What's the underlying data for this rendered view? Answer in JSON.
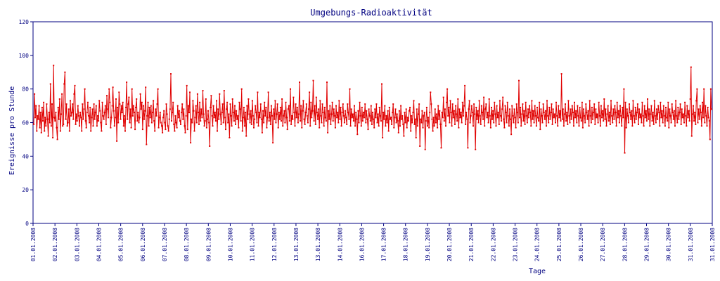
{
  "chart_data": {
    "type": "line",
    "title": "Umgebungs-Radioaktivität",
    "xlabel": "Tage",
    "ylabel": "Ereignisse pro Stunde",
    "ylim": [
      0,
      120
    ],
    "yticks": [
      0,
      20,
      40,
      60,
      80,
      100,
      120
    ],
    "x_tick_labels": [
      "01.01.2008",
      "02.01.2008",
      "03.01.2008",
      "04.01.2008",
      "05.01.2008",
      "06.01.2008",
      "07.01.2008",
      "08.01.2008",
      "09.01.2008",
      "10.01.2008",
      "11.01.2008",
      "12.01.2008",
      "13.01.2008",
      "13.01.2008",
      "14.01.2008",
      "16.01.2008",
      "17.01.2008",
      "18.01.2008",
      "19.01.2008",
      "20.01.2008",
      "21.01.2008",
      "22.01.2008",
      "23.01.2008",
      "24.01.2008",
      "25.01.2008",
      "26.01.2008",
      "27.01.2008",
      "28.01.2008",
      "29.01.2008",
      "30.01.2008",
      "31.01.2008",
      "31.01.2008"
    ],
    "grid": false,
    "color": "#e00000",
    "axis_color": "#000080",
    "series": [
      {
        "values": [
          59,
          77,
          63,
          70,
          55,
          64,
          62,
          70,
          57,
          66,
          54,
          69,
          61,
          72,
          55,
          63,
          58,
          71,
          62,
          52,
          66,
          60,
          83,
          58,
          71,
          51,
          94,
          63,
          61,
          66,
          57,
          50,
          69,
          62,
          74,
          55,
          65,
          77,
          58,
          59,
          83,
          90,
          62,
          71,
          58,
          60,
          68,
          55,
          73,
          64,
          66,
          71,
          62,
          77,
          82,
          59,
          65,
          61,
          70,
          64,
          58,
          66,
          63,
          55,
          71,
          62,
          68,
          80,
          61,
          57,
          66,
          72,
          64,
          60,
          69,
          55,
          63,
          68,
          58,
          71,
          62,
          66,
          70,
          58,
          64,
          61,
          73,
          67,
          60,
          55,
          72,
          64,
          62,
          66,
          70,
          59,
          76,
          68,
          63,
          80,
          72,
          57,
          63,
          70,
          81,
          67,
          58,
          63,
          74,
          49,
          69,
          60,
          78,
          71,
          62,
          70,
          66,
          72,
          58,
          64,
          55,
          69,
          84,
          62,
          71,
          75,
          60,
          68,
          57,
          80,
          64,
          70,
          66,
          56,
          69,
          74,
          61,
          66,
          60,
          63,
          77,
          68,
          72,
          56,
          70,
          62,
          67,
          81,
          47,
          64,
          72,
          58,
          69,
          63,
          70,
          60,
          66,
          73,
          61,
          55,
          68,
          64,
          71,
          80,
          57,
          63,
          66,
          60,
          58,
          54,
          63,
          67,
          60,
          56,
          71,
          65,
          58,
          55,
          62,
          68,
          89,
          61,
          66,
          72,
          59,
          55,
          64,
          60,
          57,
          70,
          63,
          67,
          61,
          59,
          66,
          71,
          62,
          68,
          58,
          54,
          64,
          82,
          56,
          70,
          66,
          78,
          48,
          62,
          60,
          73,
          67,
          55,
          63,
          70,
          60,
          77,
          66,
          59,
          72,
          61,
          68,
          63,
          79,
          65,
          58,
          61,
          74,
          57,
          62,
          67,
          60,
          46,
          69,
          76,
          64,
          58,
          70,
          63,
          66,
          61,
          73,
          55,
          68,
          62,
          77,
          65,
          59,
          66,
          71,
          60,
          79,
          63,
          56,
          68,
          72,
          60,
          65,
          51,
          71,
          64,
          58,
          74,
          66,
          61,
          70,
          59,
          67,
          62,
          64,
          57,
          72,
          68,
          61,
          80,
          55,
          63,
          69,
          58,
          66,
          52,
          70,
          62,
          74,
          65,
          60,
          67,
          59,
          73,
          64,
          57,
          62,
          70,
          66,
          60,
          78,
          58,
          66,
          63,
          71,
          62,
          54,
          67,
          60,
          72,
          64,
          69,
          57,
          63,
          78,
          61,
          66,
          59,
          70,
          64,
          48,
          68,
          62,
          73,
          60,
          65,
          71,
          57,
          66,
          62,
          69,
          61,
          74,
          58,
          64,
          67,
          60,
          72,
          63,
          56,
          68,
          70,
          61,
          80,
          59,
          64,
          62,
          75,
          66,
          58,
          71,
          63,
          69,
          60,
          65,
          84,
          61,
          70,
          57,
          67,
          73,
          62,
          59,
          66,
          71,
          64,
          60,
          68,
          78,
          58,
          72,
          63,
          67,
          85,
          61,
          70,
          59,
          75,
          66,
          62,
          68,
          57,
          73,
          64,
          60,
          71,
          66,
          58,
          69,
          63,
          61,
          84,
          54,
          67,
          62,
          70,
          59,
          65,
          72,
          61,
          68,
          64,
          57,
          70,
          63,
          66,
          60,
          73,
          62,
          69,
          58,
          66,
          71,
          64,
          60,
          67,
          63,
          59,
          71,
          66,
          62,
          80,
          58,
          68,
          63,
          65,
          61,
          70,
          58,
          66,
          62,
          53,
          67,
          60,
          72,
          64,
          58,
          69,
          61,
          66,
          63,
          71,
          60,
          67,
          62,
          56,
          68,
          64,
          61,
          70,
          59,
          66,
          62,
          57,
          68,
          63,
          71,
          60,
          65,
          58,
          69,
          64,
          61,
          83,
          51,
          66,
          62,
          70,
          58,
          64,
          60,
          67,
          55,
          69,
          62,
          63,
          59,
          66,
          71,
          57,
          63,
          68,
          60,
          65,
          61,
          54,
          67,
          58,
          70,
          62,
          64,
          59,
          52,
          66,
          60,
          68,
          57,
          63,
          61,
          67,
          69,
          55,
          64,
          60,
          66,
          73,
          59,
          62,
          51,
          68,
          58,
          65,
          71,
          46,
          62,
          60,
          67,
          57,
          64,
          66,
          44,
          61,
          69,
          58,
          63,
          57,
          66,
          78,
          71,
          62,
          55,
          63,
          58,
          68,
          60,
          65,
          57,
          70,
          62,
          67,
          59,
          45,
          66,
          63,
          75,
          61,
          68,
          58,
          72,
          80,
          64,
          69,
          60,
          73,
          66,
          58,
          71,
          63,
          67,
          59,
          70,
          65,
          61,
          74,
          57,
          68,
          63,
          66,
          60,
          72,
          64,
          70,
          82,
          59,
          66,
          62,
          45,
          68,
          73,
          60,
          64,
          70,
          66,
          58,
          71,
          65,
          44,
          69,
          62,
          67,
          60,
          73,
          64,
          59,
          70,
          66,
          62,
          75,
          58,
          68,
          71,
          63,
          66,
          60,
          74,
          64,
          57,
          69,
          62,
          67,
          60,
          72,
          65,
          58,
          70,
          63,
          66,
          59,
          73,
          64,
          61,
          68,
          75,
          62,
          57,
          70,
          66,
          60,
          72,
          64,
          58,
          68,
          62,
          53,
          70,
          64,
          60,
          68,
          63,
          57,
          71,
          66,
          60,
          85,
          63,
          69,
          58,
          65,
          71,
          61,
          67,
          59,
          72,
          64,
          60,
          68,
          63,
          70,
          66,
          58,
          73,
          62,
          67,
          60,
          70,
          64,
          58,
          69,
          63,
          61,
          72,
          56,
          68,
          64,
          60,
          71,
          66,
          62,
          67,
          58,
          73,
          64,
          60,
          69,
          62,
          66,
          71,
          59,
          68,
          63,
          65,
          60,
          72,
          64,
          58,
          70,
          63,
          67,
          61,
          89,
          62,
          68,
          58,
          65,
          71,
          61,
          66,
          59,
          73,
          64,
          60,
          68,
          62,
          70,
          66,
          58,
          72,
          63,
          67,
          60,
          70,
          64,
          58,
          69,
          63,
          61,
          72,
          57,
          68,
          64,
          60,
          71,
          66,
          62,
          67,
          58,
          73,
          64,
          60,
          69,
          62,
          66,
          71,
          59,
          68,
          63,
          65,
          60,
          72,
          64,
          58,
          70,
          63,
          67,
          61,
          74,
          62,
          68,
          58,
          65,
          70,
          61,
          66,
          59,
          73,
          64,
          60,
          68,
          62,
          70,
          66,
          58,
          72,
          63,
          67,
          60,
          70,
          64,
          58,
          69,
          63,
          80,
          42,
          72,
          57,
          68,
          64,
          60,
          71,
          66,
          62,
          67,
          58,
          73,
          64,
          60,
          69,
          62,
          66,
          71,
          59,
          68,
          63,
          65,
          60,
          72,
          64,
          58,
          70,
          63,
          67,
          61,
          74,
          62,
          68,
          58,
          65,
          70,
          61,
          66,
          59,
          73,
          64,
          60,
          68,
          62,
          70,
          66,
          58,
          72,
          63,
          67,
          60,
          70,
          64,
          58,
          69,
          63,
          61,
          72,
          57,
          68,
          64,
          60,
          71,
          66,
          62,
          67,
          58,
          73,
          64,
          60,
          69,
          62,
          66,
          71,
          59,
          68,
          63,
          65,
          60,
          72,
          64,
          58,
          70,
          63,
          67,
          61,
          74,
          93,
          52,
          65,
          70,
          61,
          66,
          59,
          73,
          80,
          60,
          68,
          62,
          70,
          66,
          58,
          72,
          63,
          80,
          60,
          70,
          64,
          58,
          69,
          63,
          61,
          50,
          80,
          68
        ]
      }
    ]
  }
}
